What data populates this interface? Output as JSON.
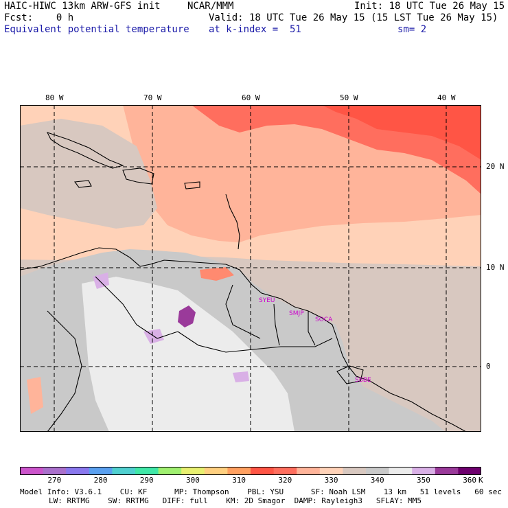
{
  "header": {
    "title": "HAIC-HIWC 13km ARW-GFS init",
    "center": "NCAR/MMM",
    "init": "Init: 18 UTC Tue 26 May 15",
    "fcst": "Fcst:    0 h",
    "valid": "Valid: 18 UTC Tue 26 May 15 (15 LST Tue 26 May 15)",
    "field": "Equivalent potential temperature",
    "level": "at k-index =  51",
    "smoothing": "sm= 2"
  },
  "map": {
    "lon_labels": [
      "80 W",
      "70 W",
      "60 W",
      "50 W",
      "40 W"
    ],
    "lat_labels": [
      "20 N",
      "10 N",
      "0"
    ],
    "stations": [
      "SYEU",
      "SMJP",
      "SOCA",
      "SBBE"
    ]
  },
  "colorbar": {
    "labels": [
      "270",
      "280",
      "290",
      "300",
      "310",
      "320",
      "330",
      "340",
      "350",
      "360"
    ],
    "unit": "K",
    "colors": [
      "#cc55cc",
      "#aa70cc",
      "#8a78ee",
      "#5aa0f0",
      "#50d0d0",
      "#40e8a8",
      "#a0f070",
      "#e8f070",
      "#ffd080",
      "#ffa060",
      "#ff5545",
      "#ff6e5e",
      "#ffb49a",
      "#ffd2b8",
      "#d8c8c0",
      "#c9c9c9",
      "#ececec",
      "#d9b0e6",
      "#9a3a9a",
      "#6e006e"
    ]
  },
  "footer": {
    "line1": "Model Info: V3.6.1    CU: KF      MP: Thompson    PBL: YSU      SF: Noah LSM    13 km   51 levels   60 sec",
    "line2": "LW: RRTMG    SW: RRTMG   DIFF: full    KM: 2D Smagor  DAMP: Rayleigh3   SFLAY: MM5"
  }
}
